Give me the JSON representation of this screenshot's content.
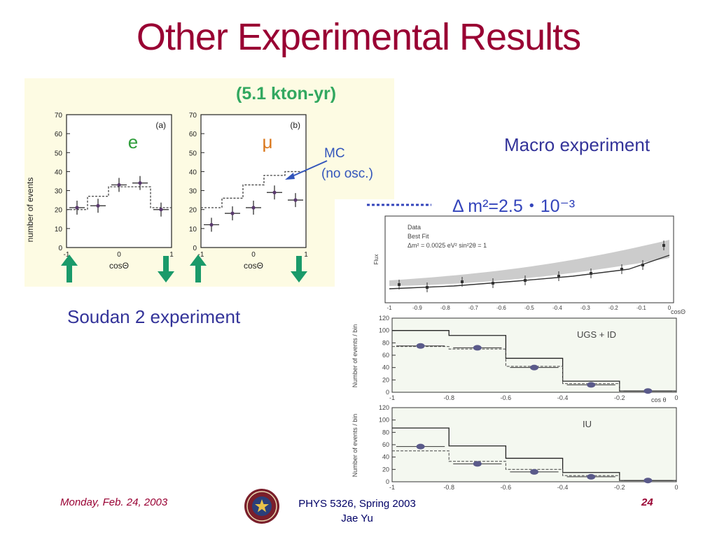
{
  "slide": {
    "title": "Other Experimental Results",
    "label_macro": "Macro experiment",
    "label_soudan": "Soudan 2 experiment"
  },
  "soudan_figure": {
    "header": "(5.1 kton-yr)",
    "ylabel": "number of events",
    "xlabel": "cosΘ",
    "yticks": [
      "70",
      "60",
      "50",
      "40",
      "30",
      "20",
      "10",
      "0"
    ],
    "xticks": [
      "-1",
      "0",
      "1"
    ],
    "panel_a": {
      "tag": "(a)",
      "particle": "e"
    },
    "panel_b": {
      "tag": "(b)",
      "particle": "μ"
    },
    "mc_label": "MC",
    "mc_note": "(no osc.)",
    "colors": {
      "background": "#fdfbe3",
      "e_symbol": "#2e9d3a",
      "mu_symbol": "#d9761a",
      "mc_text": "#3355bb",
      "arrow": "#1a9a6a",
      "header": "#32a860"
    }
  },
  "macro_figure": {
    "header": "Δ m²=2.5・10⁻³",
    "top_legend": [
      "Data",
      "Best Fit",
      "Δm² = 0.0025 eV²  sin²2θ = 1"
    ],
    "top_xticks": [
      "-1",
      "-0.9",
      "-0.8",
      "-0.7",
      "-0.6",
      "-0.5",
      "-0.4",
      "-0.3",
      "-0.2",
      "-0.1",
      "0"
    ],
    "top_xlabel": "cosΘ",
    "top_ylabel": "Flux",
    "mid_title": "UGS + ID",
    "mid_yticks": [
      "120",
      "100",
      "80",
      "60",
      "40",
      "20",
      "0"
    ],
    "bottom_title": "IU",
    "bottom_yticks": [
      "120",
      "100",
      "80",
      "60",
      "40",
      "20",
      "0"
    ],
    "hist_xticks": [
      "-1",
      "-0.8",
      "-0.6",
      "-0.4",
      "-0.2",
      "0"
    ],
    "hist_xlabel": "cos θ",
    "hist_ylabel": "Number of events / bin",
    "colors": {
      "header": "#3344bb",
      "panel_bg": "#f4f8f0",
      "band": "#999999"
    }
  },
  "footer": {
    "date": "Monday, Feb. 24, 2003",
    "course_line1": "PHYS 5326, Spring 2003",
    "course_line2": "Jae Yu",
    "page": "24"
  },
  "chart_data": [
    {
      "type": "bar",
      "panel": "(a) e",
      "x": [
        -0.8,
        -0.4,
        0.0,
        0.4,
        0.8
      ],
      "data_values": [
        21,
        22,
        33,
        34,
        20
      ],
      "mc_values": [
        20,
        27,
        32,
        32,
        21
      ],
      "ylim": [
        0,
        70
      ],
      "xlim": [
        -1,
        1
      ],
      "xlabel": "cosΘ",
      "ylabel": "number of events"
    },
    {
      "type": "bar",
      "panel": "(b) μ",
      "x": [
        -0.8,
        -0.4,
        0.0,
        0.4,
        0.8
      ],
      "data_values": [
        12,
        18,
        21,
        29,
        25
      ],
      "mc_values": [
        21,
        26,
        33,
        38,
        40
      ],
      "ylim": [
        0,
        70
      ],
      "xlim": [
        -1,
        1
      ],
      "xlabel": "cosΘ",
      "ylabel": "number of events"
    },
    {
      "type": "bar",
      "panel": "UGS + ID",
      "x": [
        -0.9,
        -0.7,
        -0.5,
        -0.3,
        -0.1
      ],
      "data_values": [
        75,
        72,
        40,
        12,
        2
      ],
      "expected_no_osc": [
        100,
        92,
        55,
        18,
        2
      ],
      "best_fit": [
        74,
        70,
        42,
        14,
        2
      ],
      "ylim": [
        0,
        120
      ],
      "xlim": [
        -1,
        0
      ],
      "xlabel": "cos θ",
      "ylabel": "Number of events / bin"
    },
    {
      "type": "bar",
      "panel": "IU",
      "x": [
        -0.9,
        -0.7,
        -0.5,
        -0.3,
        -0.1
      ],
      "data_values": [
        57,
        29,
        16,
        8,
        2
      ],
      "expected_no_osc": [
        87,
        58,
        38,
        15,
        2
      ],
      "best_fit": [
        50,
        33,
        20,
        10,
        2
      ],
      "ylim": [
        0,
        120
      ],
      "xlim": [
        -1,
        0
      ],
      "xlabel": "cos θ",
      "ylabel": "Number of events / bin"
    }
  ]
}
